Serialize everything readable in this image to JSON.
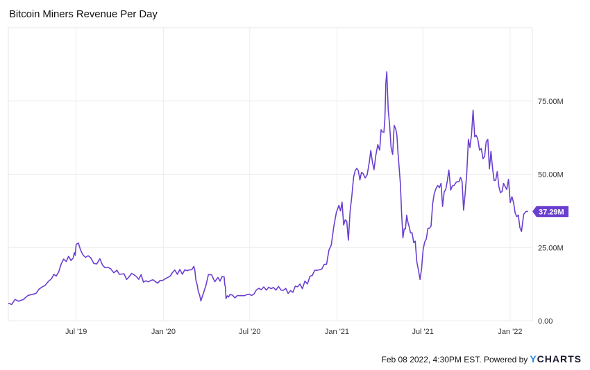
{
  "chart_data": {
    "type": "line",
    "title": "Bitcoin Miners Revenue Per Day",
    "x_tick_labels": [
      "Jul '19",
      "Jan '20",
      "Jul '20",
      "Jan '21",
      "Jul '21",
      "Jan '22"
    ],
    "y_tick_labels": [
      "0.00",
      "25.00M",
      "50.00M",
      "75.00M"
    ],
    "ylim": [
      0,
      100
    ],
    "grid": true,
    "series": [
      {
        "color": "#6a3fd0",
        "last_value_label": "37.29M",
        "x": [
          "2019-02-08",
          "2019-03-01",
          "2019-04-01",
          "2019-04-20",
          "2019-05-10",
          "2019-05-25",
          "2019-06-10",
          "2019-06-25",
          "2019-07-01",
          "2019-07-15",
          "2019-08-01",
          "2019-08-20",
          "2019-09-05",
          "2019-09-25",
          "2019-10-10",
          "2019-10-26",
          "2019-11-10",
          "2019-11-25",
          "2019-12-10",
          "2019-12-25",
          "2020-01-10",
          "2020-01-25",
          "2020-02-10",
          "2020-02-25",
          "2020-03-05",
          "2020-03-12",
          "2020-03-20",
          "2020-04-05",
          "2020-04-25",
          "2020-05-08",
          "2020-05-12",
          "2020-05-20",
          "2020-06-05",
          "2020-06-20",
          "2020-07-05",
          "2020-07-20",
          "2020-08-05",
          "2020-08-20",
          "2020-09-05",
          "2020-09-20",
          "2020-10-05",
          "2020-10-20",
          "2020-11-05",
          "2020-11-20",
          "2020-12-05",
          "2020-12-20",
          "2021-01-05",
          "2021-01-15",
          "2021-01-25",
          "2021-02-05",
          "2021-02-15",
          "2021-02-25",
          "2021-03-10",
          "2021-03-20",
          "2021-04-01",
          "2021-04-10",
          "2021-04-16",
          "2021-04-25",
          "2021-05-05",
          "2021-05-12",
          "2021-05-20",
          "2021-05-28",
          "2021-06-05",
          "2021-06-15",
          "2021-06-25",
          "2021-07-05",
          "2021-07-15",
          "2021-07-25",
          "2021-08-05",
          "2021-08-15",
          "2021-08-25",
          "2021-09-05",
          "2021-09-15",
          "2021-09-25",
          "2021-10-05",
          "2021-10-15",
          "2021-10-25",
          "2021-11-05",
          "2021-11-15",
          "2021-11-25",
          "2021-12-05",
          "2021-12-15",
          "2021-12-25",
          "2022-01-05",
          "2022-01-15",
          "2022-01-25",
          "2022-02-08"
        ],
        "y": [
          6,
          7,
          9,
          11,
          14,
          17,
          22,
          20,
          26,
          22,
          20,
          20,
          19,
          16,
          15,
          16,
          15,
          14,
          13,
          14,
          15,
          17,
          16,
          17,
          18,
          12,
          7,
          15,
          14,
          16,
          8,
          9,
          8,
          8,
          9,
          12,
          11,
          11,
          11,
          10,
          11,
          12,
          14,
          18,
          19,
          25,
          43,
          35,
          30,
          45,
          52,
          47,
          55,
          53,
          60,
          68,
          78,
          55,
          70,
          50,
          30,
          35,
          30,
          26,
          14,
          28,
          32,
          41,
          44,
          42,
          48,
          50,
          52,
          40,
          60,
          66,
          59,
          60,
          57,
          52,
          50,
          46,
          45,
          43,
          39,
          32,
          37.29
        ]
      }
    ]
  },
  "footer": {
    "timestamp": "Feb 08 2022, 4:30PM EST.",
    "powered_by": "Powered by",
    "brand_mark": "Y",
    "brand_rest": "CHARTS"
  }
}
